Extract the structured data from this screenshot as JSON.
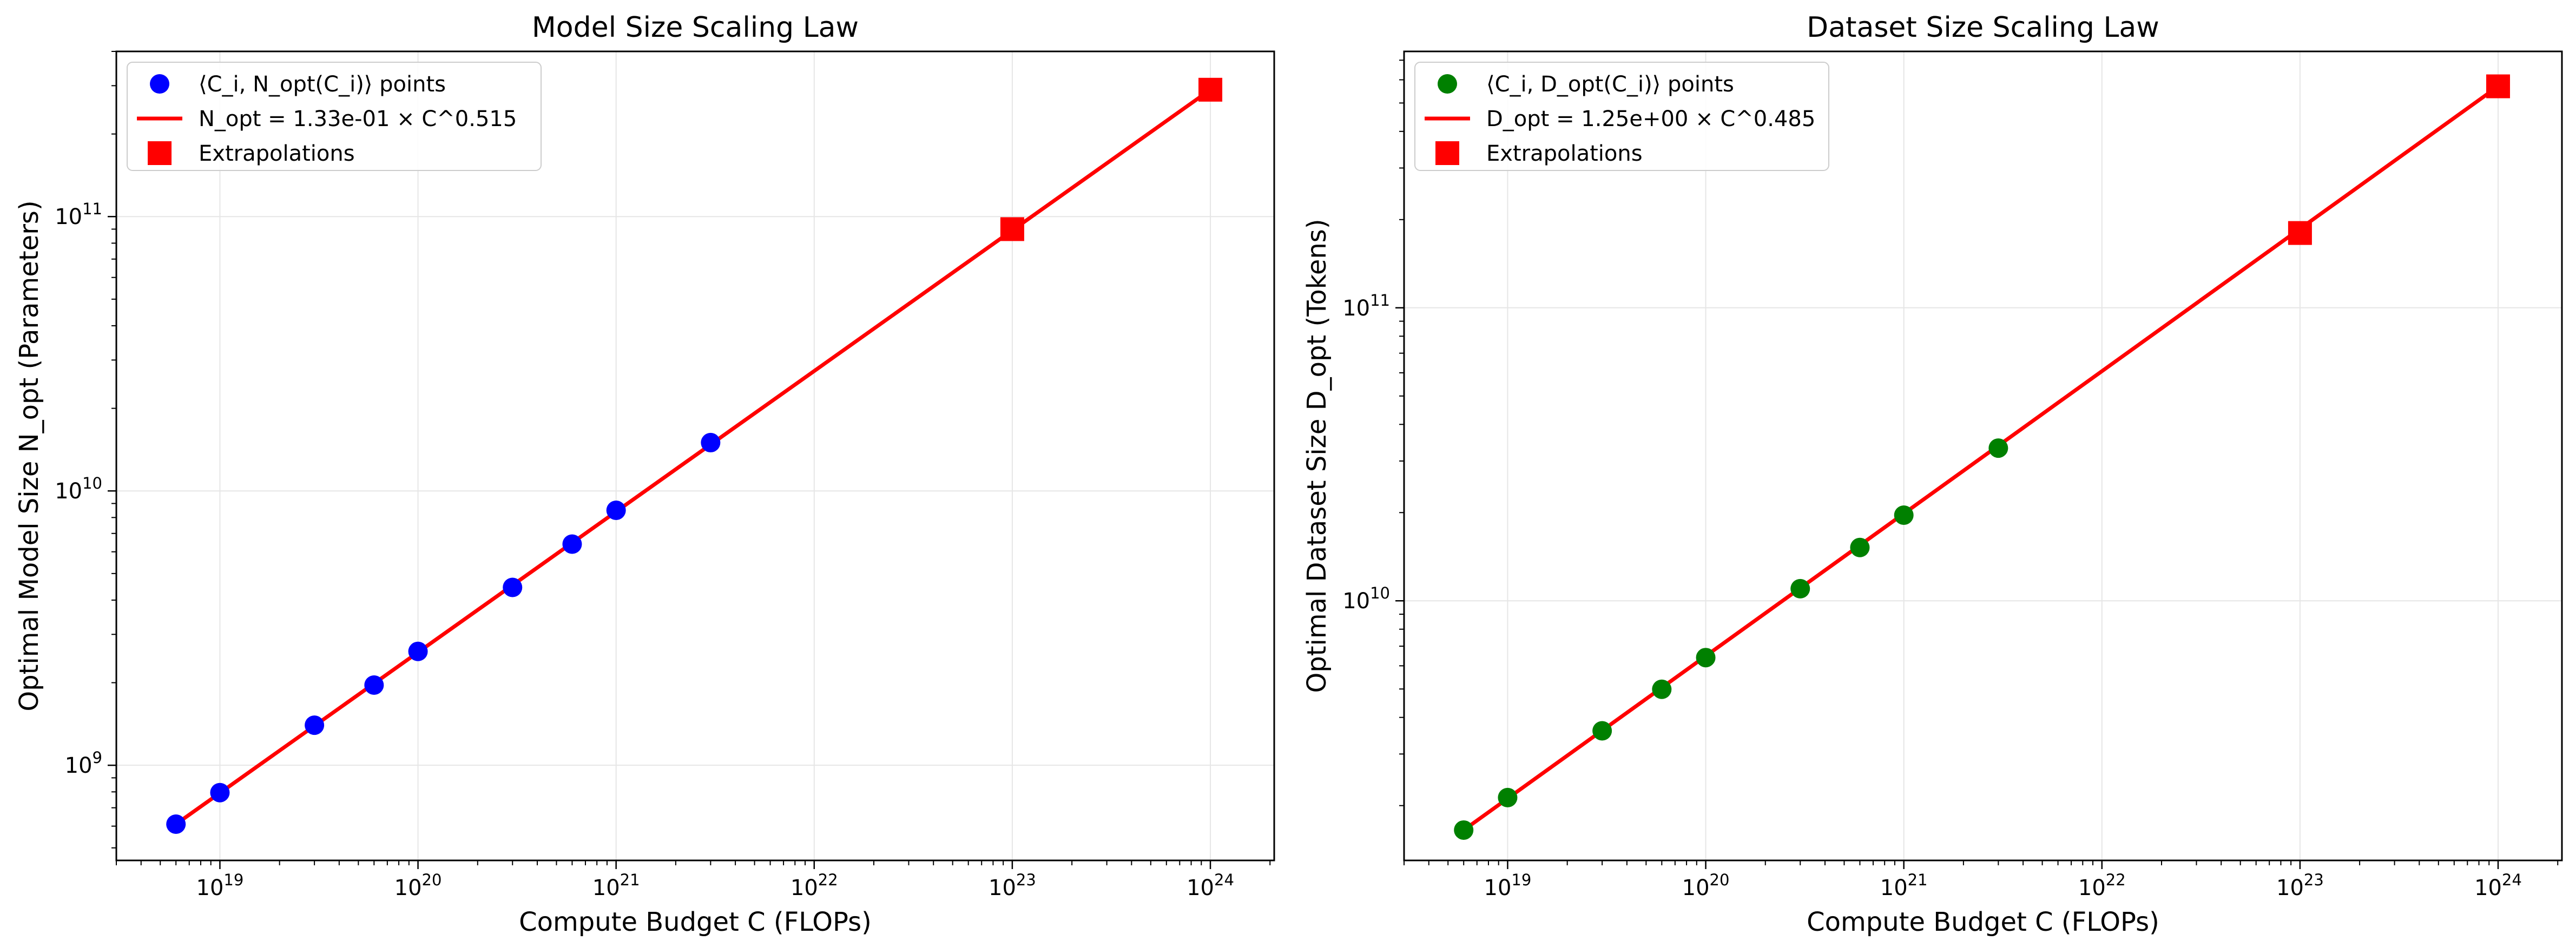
{
  "chart_data": [
    {
      "type": "scatter",
      "title": "Model Size Scaling Law",
      "xlabel": "Compute Budget C (FLOPs)",
      "ylabel": "Optimal Model Size N_opt (Parameters)",
      "xscale": "log",
      "yscale": "log",
      "xlim": [
        3e+18,
        2.1e+24
      ],
      "ylim": [
        450000000.0,
        400000000000.0
      ],
      "grid": true,
      "legend_position": "top-left",
      "x_tick_labels": [
        {
          "value": 1e+19,
          "base": "10",
          "exp": "19"
        },
        {
          "value": 1e+20,
          "base": "10",
          "exp": "20"
        },
        {
          "value": 1e+21,
          "base": "10",
          "exp": "21"
        },
        {
          "value": 1e+22,
          "base": "10",
          "exp": "22"
        },
        {
          "value": 1e+23,
          "base": "10",
          "exp": "23"
        },
        {
          "value": 1e+24,
          "base": "10",
          "exp": "24"
        }
      ],
      "y_tick_labels": [
        {
          "value": 1000000000.0,
          "base": "10",
          "exp": "9"
        },
        {
          "value": 10000000000.0,
          "base": "10",
          "exp": "10"
        },
        {
          "value": 100000000000.0,
          "base": "10",
          "exp": "11"
        }
      ],
      "series": [
        {
          "name": "⟨C_i, N_opt(C_i)⟩ points",
          "kind": "points",
          "marker": "circle",
          "color": "#0000ff",
          "x": [
            6e+18,
            1e+19,
            3e+19,
            6e+19,
            1e+20,
            3e+20,
            6e+20,
            1e+21,
            3e+21
          ],
          "y": [
            610000000.0,
            795000000.0,
            1400000000.0,
            1960000000.0,
            2600000000.0,
            4450000000.0,
            6400000000.0,
            8500000000.0,
            15000000000.0
          ]
        },
        {
          "name": "N_opt = 1.33e-01 × C^0.515",
          "kind": "line",
          "color": "#ff0000",
          "x": [
            6e+18,
            1e+24
          ],
          "y": [
            610000000.0,
            290000000000.0
          ]
        },
        {
          "name": "Extrapolations",
          "kind": "points",
          "marker": "square",
          "color": "#ff0000",
          "x": [
            1e+23,
            1e+24
          ],
          "y": [
            90000000000.0,
            290000000000.0
          ]
        }
      ]
    },
    {
      "type": "scatter",
      "title": "Dataset Size Scaling Law",
      "xlabel": "Compute Budget C (FLOPs)",
      "ylabel": "Optimal Dataset Size D_opt (Tokens)",
      "xscale": "log",
      "yscale": "log",
      "xlim": [
        3e+18,
        2.1e+24
      ],
      "ylim": [
        1300000000.0,
        750000000000.0
      ],
      "grid": true,
      "legend_position": "top-left",
      "x_tick_labels": [
        {
          "value": 1e+19,
          "base": "10",
          "exp": "19"
        },
        {
          "value": 1e+20,
          "base": "10",
          "exp": "20"
        },
        {
          "value": 1e+21,
          "base": "10",
          "exp": "21"
        },
        {
          "value": 1e+22,
          "base": "10",
          "exp": "22"
        },
        {
          "value": 1e+23,
          "base": "10",
          "exp": "23"
        },
        {
          "value": 1e+24,
          "base": "10",
          "exp": "24"
        }
      ],
      "y_tick_labels": [
        {
          "value": 10000000000.0,
          "base": "10",
          "exp": "10"
        },
        {
          "value": 100000000000.0,
          "base": "10",
          "exp": "11"
        }
      ],
      "series": [
        {
          "name": "⟨C_i, D_opt(C_i)⟩ points",
          "kind": "points",
          "marker": "circle",
          "color": "#008000",
          "x": [
            6e+18,
            1e+19,
            3e+19,
            6e+19,
            1e+20,
            3e+20,
            6e+20,
            1e+21,
            3e+21
          ],
          "y": [
            1650000000.0,
            2130000000.0,
            3600000000.0,
            4990000000.0,
            6400000000.0,
            11000000000.0,
            15200000000.0,
            19600000000.0,
            33200000000.0
          ]
        },
        {
          "name": "D_opt = 1.25e+00 × C^0.485",
          "kind": "line",
          "color": "#ff0000",
          "x": [
            6e+18,
            1e+24
          ],
          "y": [
            1650000000.0,
            570000000000.0
          ]
        },
        {
          "name": "Extrapolations",
          "kind": "points",
          "marker": "square",
          "color": "#ff0000",
          "x": [
            1e+23,
            1e+24
          ],
          "y": [
            180000000000.0,
            570000000000.0
          ]
        }
      ]
    }
  ]
}
